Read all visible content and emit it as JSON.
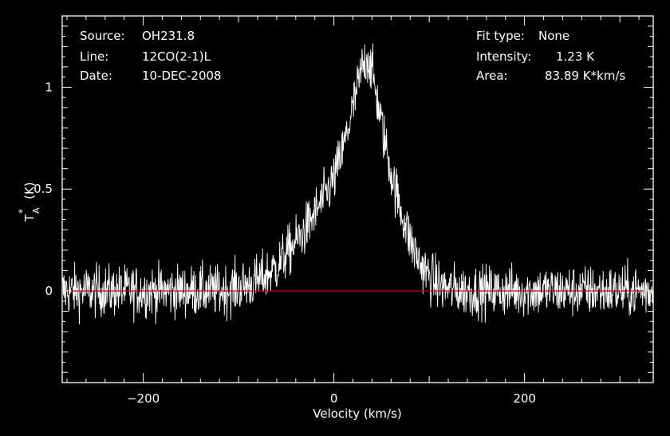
{
  "info_left": [
    {
      "label": "Source:",
      "value": "OH231.8"
    },
    {
      "label": "Line:",
      "value": "12CO(2-1)L"
    },
    {
      "label": "Date:",
      "value": "10-DEC-2008"
    }
  ],
  "info_right": [
    {
      "label": "Fit type:",
      "value": "None"
    },
    {
      "label": "Intensity:",
      "value": "1.23 K"
    },
    {
      "label": "Area:",
      "value": "83.89 K*km/s"
    }
  ],
  "colors": {
    "background": "#000000",
    "frame": "#ffffff",
    "spectrum": "#ffffff",
    "baseline": "#cc0000"
  },
  "chart_data": {
    "type": "line",
    "xlabel": "Velocity (km/s)",
    "ylabel_main": "T",
    "ylabel_sub": "A",
    "ylabel_sup": "*",
    "ylabel_unit": "(K)",
    "xlim": [
      -285,
      335
    ],
    "ylim": [
      -0.45,
      1.35
    ],
    "xticks": [
      -200,
      0,
      200
    ],
    "xtick_labels": [
      "−200",
      "0",
      "200"
    ],
    "yticks": [
      0,
      0.5,
      1
    ],
    "ytick_labels": [
      "0",
      "0.5",
      "1"
    ],
    "baseline_y": 0,
    "grid": false,
    "series": [
      {
        "x": [
          -280,
          -260,
          -240,
          -220,
          -200,
          -180,
          -160,
          -140,
          -120,
          -100,
          -90,
          -80,
          -70,
          -60,
          -50,
          -40,
          -30,
          -20,
          -10,
          0,
          10,
          20,
          25,
          30,
          35,
          40,
          45,
          50,
          55,
          60,
          70,
          80,
          90,
          100,
          110,
          120,
          140,
          160,
          180,
          200,
          220,
          240,
          260,
          280,
          300,
          320,
          330
        ],
        "y": [
          0.0,
          0.0,
          0.0,
          0.0,
          0.0,
          0.0,
          0.0,
          0.0,
          0.0,
          0.02,
          0.03,
          0.05,
          0.08,
          0.12,
          0.18,
          0.24,
          0.3,
          0.38,
          0.46,
          0.55,
          0.7,
          0.9,
          1.0,
          1.1,
          1.15,
          1.08,
          0.95,
          0.82,
          0.7,
          0.58,
          0.4,
          0.25,
          0.14,
          0.07,
          0.03,
          0.01,
          0.0,
          0.0,
          0.0,
          0.0,
          0.0,
          0.0,
          0.0,
          0.0,
          0.0,
          0.0,
          0.0
        ],
        "noise_rms_K": 0.09
      }
    ]
  }
}
